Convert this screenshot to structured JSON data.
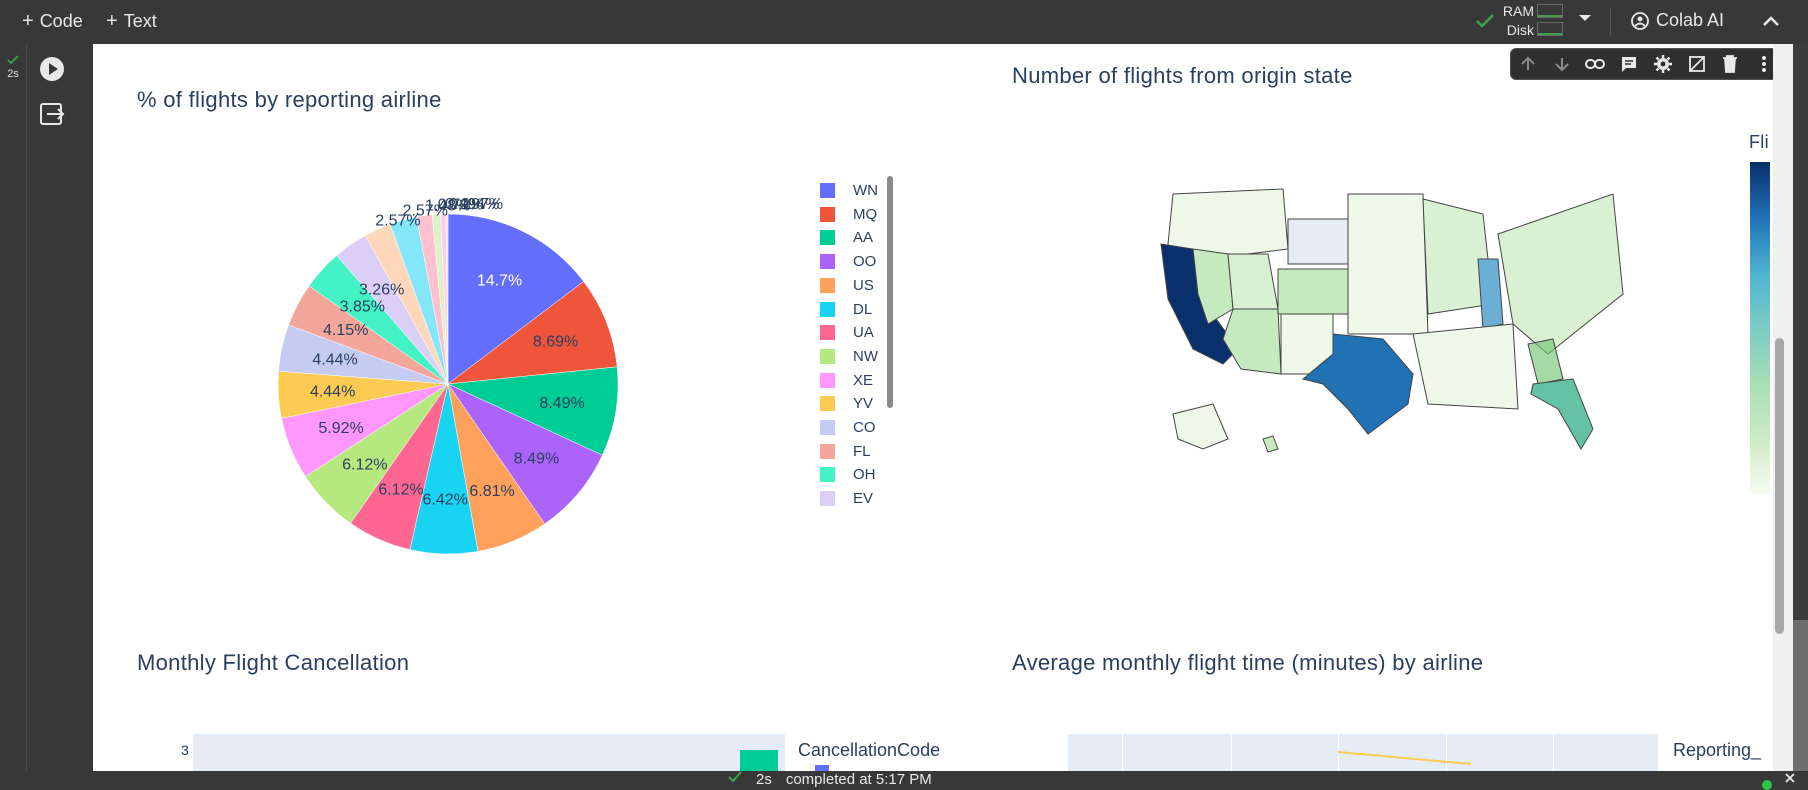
{
  "toolbar": {
    "add_code_label": "Code",
    "add_text_label": "Text",
    "ram_label": "RAM",
    "disk_label": "Disk",
    "colab_ai_label": "Colab AI"
  },
  "cell": {
    "exec_time": "2s"
  },
  "cell_toolbar": {
    "icons": [
      "arrow-up-icon",
      "arrow-down-icon",
      "link-icon",
      "comment-icon",
      "gear-icon",
      "mirror-cell-icon",
      "trash-icon",
      "more-vert-icon"
    ]
  },
  "status_bar": {
    "duration": "2s",
    "message": "completed at 5:17 PM"
  },
  "colors": {
    "accent_green": "#3fa14a",
    "plot_bg": "#e5ecf6",
    "text": "#2a3f5f"
  },
  "pie_chart": {
    "chart_data": {
      "type": "pie",
      "title": "% of flights by reporting airline",
      "slices": [
        {
          "label": "WN",
          "value": 14.7,
          "text": "14.7%",
          "color": "#636efa"
        },
        {
          "label": "MQ",
          "value": 8.69,
          "text": "8.69%",
          "color": "#ef553b"
        },
        {
          "label": "AA",
          "value": 8.49,
          "text": "8.49%",
          "color": "#00cc96"
        },
        {
          "label": "OO",
          "value": 8.49,
          "text": "8.49%",
          "color": "#ab63fa"
        },
        {
          "label": "US",
          "value": 6.81,
          "text": "6.81%",
          "color": "#ffa15a"
        },
        {
          "label": "DL",
          "value": 6.42,
          "text": "6.42%",
          "color": "#19d3f3"
        },
        {
          "label": "UA",
          "value": 6.12,
          "text": "6.12%",
          "color": "#ff6692"
        },
        {
          "label": "NW",
          "value": 6.12,
          "text": "6.12%",
          "color": "#b6e880"
        },
        {
          "label": "XE",
          "value": 5.92,
          "text": "5.92%",
          "color": "#ff97ff"
        },
        {
          "label": "YV",
          "value": 4.44,
          "text": "4.44%",
          "color": "#fecb52"
        },
        {
          "label": "CO",
          "value": 4.44,
          "text": "4.44%",
          "color": "#c6cbf4"
        },
        {
          "label": "FL",
          "value": 4.15,
          "text": "4.15%",
          "color": "#f4a69a"
        },
        {
          "label": "OH",
          "value": 3.85,
          "text": "3.85%",
          "color": "#43f3c6"
        },
        {
          "label": "EV",
          "value": 3.26,
          "text": "3.26%",
          "color": "#dccff7"
        },
        {
          "label": "",
          "value": 2.57,
          "text": "2.57%",
          "color": "#ffd8bc"
        },
        {
          "label": "",
          "value": 2.57,
          "text": "2.57%",
          "color": "#84e6f9"
        },
        {
          "label": "",
          "value": 1.48,
          "text": "1.48%",
          "color": "#ffc0d0"
        },
        {
          "label": "",
          "value": 0.79,
          "text": "0.79%",
          "color": "#dcf3c4"
        },
        {
          "label": "",
          "value": 0.494,
          "text": "0.494%",
          "color": "#ffc8ff"
        },
        {
          "label": "",
          "value": 0.197,
          "text": "0.197%",
          "color": "#ffe5a8"
        }
      ],
      "legend": [
        "WN",
        "MQ",
        "AA",
        "OO",
        "US",
        "DL",
        "UA",
        "NW",
        "XE",
        "YV",
        "CO",
        "FL",
        "OH",
        "EV"
      ],
      "legend_placement": "right"
    }
  },
  "map_chart": {
    "title": "Number of flights from origin state",
    "colorbar_label": "Fli"
  },
  "cancel_chart": {
    "chart_data": {
      "type": "bar",
      "title": "Monthly Flight Cancellation",
      "y_tick_visible": "3",
      "legend_title": "CancellationCode"
    }
  },
  "flighttime_chart": {
    "chart_data": {
      "type": "line",
      "title": "Average monthly flight time (minutes) by airline",
      "legend_title": "Reporting_"
    }
  }
}
